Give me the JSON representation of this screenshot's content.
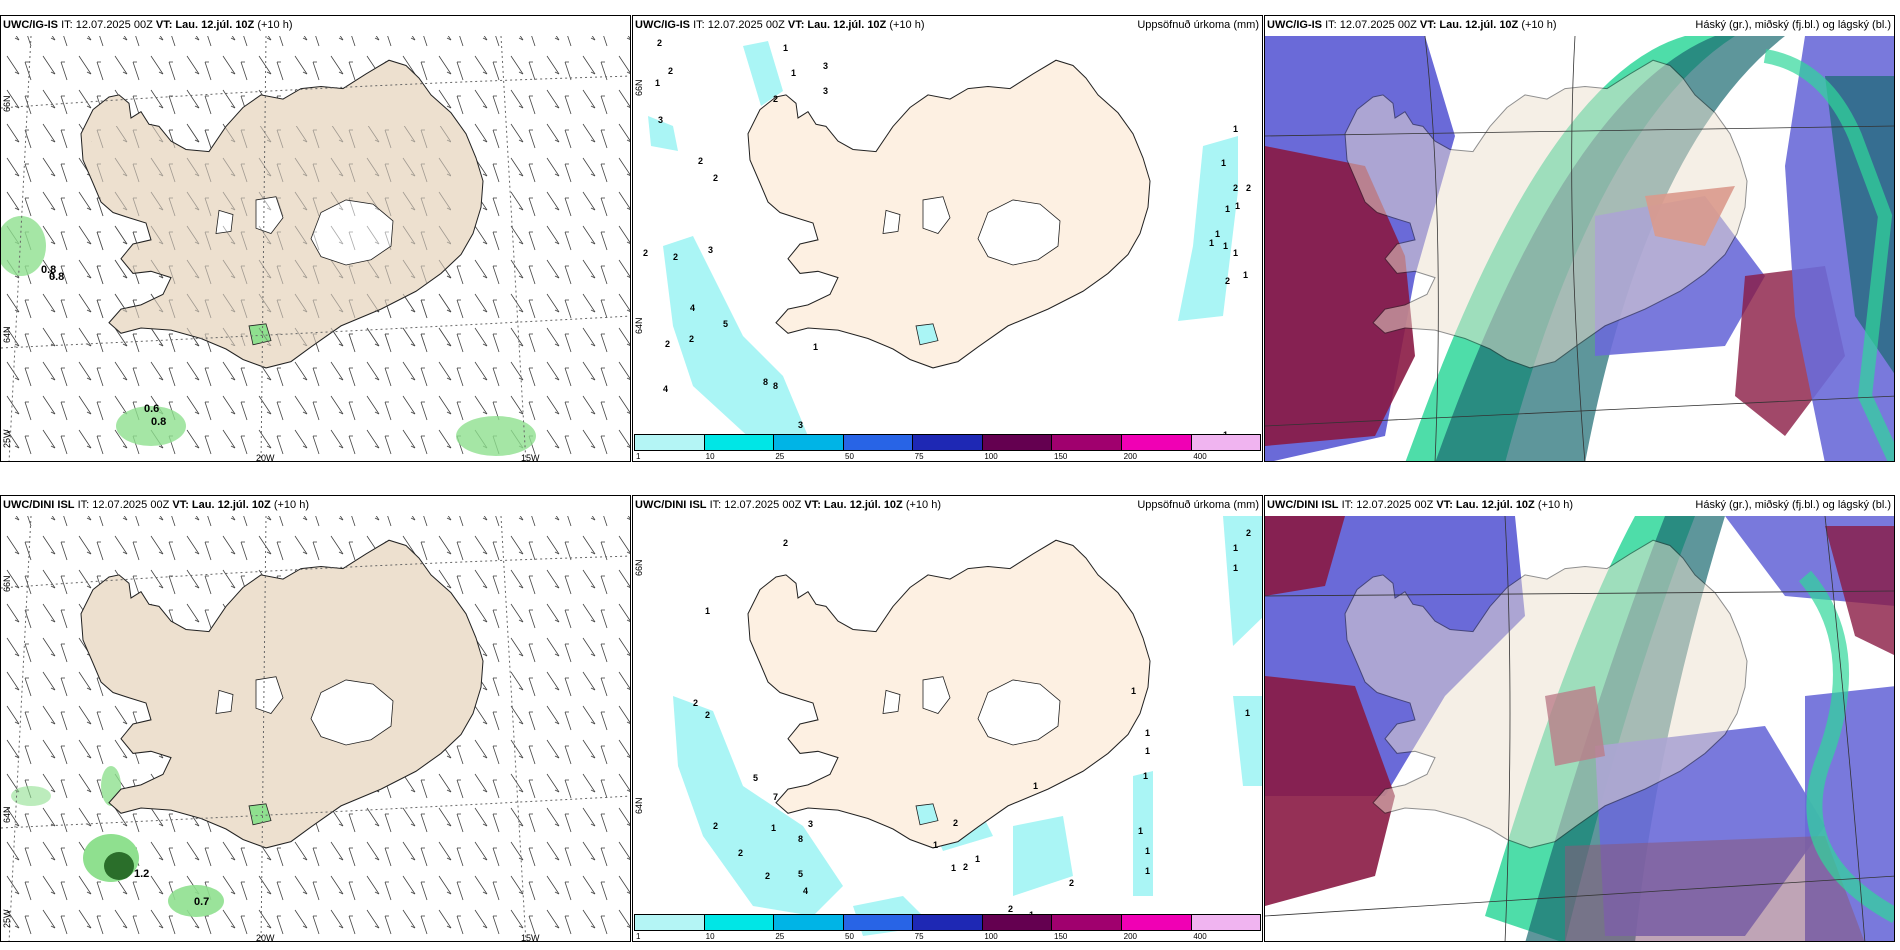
{
  "panels": {
    "top_left": {
      "model": "UWC/IG-IS",
      "it": "IT: 12.07.2025 00Z",
      "vt": "VT: Lau. 12.júl. 10Z",
      "lead": "(+10 h)",
      "right": ""
    },
    "top_mid": {
      "model": "UWC/IG-IS",
      "it": "IT: 12.07.2025 00Z",
      "vt": "VT: Lau. 12.júl. 10Z",
      "lead": "(+10 h)",
      "right": "Uppsöfnuð úrkoma (mm)"
    },
    "top_right": {
      "model": "UWC/IG-IS",
      "it": "IT: 12.07.2025 00Z",
      "vt": "VT: Lau. 12.júl. 10Z",
      "lead": "(+10 h)",
      "right": "Háský (gr.), miðský (fj.bl.) og lágský (bl.)"
    },
    "bot_left": {
      "model": "UWC/DINI ISL",
      "it": "IT: 12.07.2025 00Z",
      "vt": "VT: Lau. 12.júl. 10Z",
      "lead": "(+10 h)",
      "right": ""
    },
    "bot_mid": {
      "model": "UWC/DINI ISL",
      "it": "IT: 12.07.2025 00Z",
      "vt": "VT: Lau. 12.júl. 10Z",
      "lead": "(+10 h)",
      "right": "Uppsöfnuð úrkoma (mm)"
    },
    "bot_right": {
      "model": "UWC/DINI ISL",
      "it": "IT: 12.07.2025 00Z",
      "vt": "VT: Lau. 12.júl. 10Z",
      "lead": "(+10 h)",
      "right": "Háský (gr.), miðský (fj.bl.) og lágský (bl.)"
    }
  },
  "grid_labels": {
    "lat66": "66N",
    "lat64": "64N",
    "lon25": "25W",
    "lon20": "20W",
    "lon15": "15W"
  },
  "colorbar": {
    "ticks": [
      "1",
      "10",
      "25",
      "50",
      "75",
      "100",
      "150",
      "200",
      "400"
    ],
    "colors": [
      "#b4f5f5",
      "#00e6e6",
      "#00b4e6",
      "#2864e6",
      "#1e28b4",
      "#640050",
      "#a0006e",
      "#f000b4",
      "#f0b4f0"
    ]
  },
  "wind_precip_labels": {
    "top": [
      "0.8",
      "0.8",
      "0.6",
      "0.8"
    ],
    "bottom": [
      "1.2",
      "0.7"
    ]
  },
  "precip_labels": {
    "top": [
      "2",
      "1",
      "3",
      "1",
      "2",
      "1",
      "3",
      "3",
      "2",
      "2",
      "2",
      "3",
      "2",
      "2",
      "4",
      "2",
      "5",
      "8",
      "8",
      "3",
      "1",
      "4",
      "2",
      "1",
      "1",
      "2",
      "1",
      "1",
      "1",
      "1",
      "1",
      "2",
      "1",
      "1",
      "2",
      "1"
    ],
    "bottom": [
      "2",
      "1",
      "2",
      "2",
      "5",
      "7",
      "3",
      "8",
      "5",
      "2",
      "2",
      "4",
      "2",
      "1",
      "2",
      "1",
      "1",
      "1",
      "2",
      "2",
      "2",
      "1",
      "1",
      "1",
      "1",
      "1",
      "1",
      "1",
      "1",
      "1",
      "1",
      "2",
      "1",
      "1"
    ]
  },
  "colors": {
    "land": "#ede0cf",
    "land_precip": "#fdf0e2",
    "wind_precip": "#8fe08f",
    "precip": "#aaf5f5",
    "high_cloud": "#2fd79a",
    "mid_cloud": "#6a6ad8",
    "low_cloud": "#8a1a44"
  }
}
